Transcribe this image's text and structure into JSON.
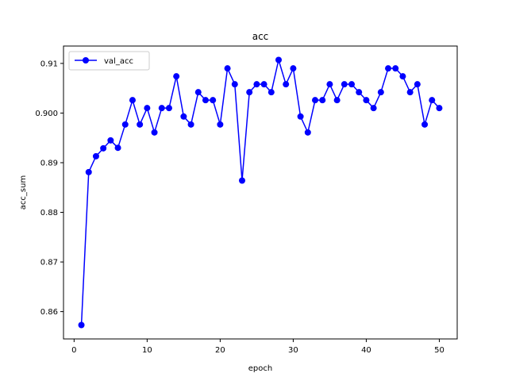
{
  "chart_data": {
    "type": "line",
    "title": "acc",
    "xlabel": "epoch",
    "ylabel": "acc_sum",
    "xlim": [
      -1.45,
      52.45
    ],
    "ylim": [
      0.8545,
      0.9135
    ],
    "xticks": [
      0,
      10,
      20,
      30,
      40,
      50
    ],
    "xtick_labels": [
      "0",
      "10",
      "20",
      "30",
      "40",
      "50"
    ],
    "yticks": [
      0.86,
      0.87,
      0.88,
      0.89,
      0.9,
      0.91
    ],
    "ytick_labels": [
      "0.86",
      "0.87",
      "0.88",
      "0.89",
      "0.900",
      "0.91"
    ],
    "grid": false,
    "legend_position": "top-left",
    "series": [
      {
        "name": "val_acc",
        "color": "#0000ff",
        "marker": "circle",
        "x": [
          1,
          2,
          3,
          4,
          5,
          6,
          7,
          8,
          9,
          10,
          11,
          12,
          13,
          14,
          15,
          16,
          17,
          18,
          19,
          20,
          21,
          22,
          23,
          24,
          25,
          26,
          27,
          28,
          29,
          30,
          31,
          32,
          33,
          34,
          35,
          36,
          37,
          38,
          39,
          40,
          41,
          42,
          43,
          44,
          45,
          46,
          47,
          48,
          49,
          50
        ],
        "values": [
          0.8573,
          0.8881,
          0.8913,
          0.8929,
          0.8945,
          0.893,
          0.8977,
          0.9026,
          0.8977,
          0.901,
          0.8961,
          0.901,
          0.901,
          0.9074,
          0.8993,
          0.8977,
          0.9042,
          0.9026,
          0.9026,
          0.8977,
          0.909,
          0.9058,
          0.8864,
          0.9042,
          0.9058,
          0.9058,
          0.9042,
          0.9107,
          0.9058,
          0.909,
          0.8993,
          0.8961,
          0.9026,
          0.9026,
          0.9058,
          0.9026,
          0.9058,
          0.9058,
          0.9042,
          0.9026,
          0.901,
          0.9042,
          0.909,
          0.909,
          0.9074,
          0.9042,
          0.9058,
          0.8977,
          0.9026,
          0.901
        ]
      }
    ]
  }
}
